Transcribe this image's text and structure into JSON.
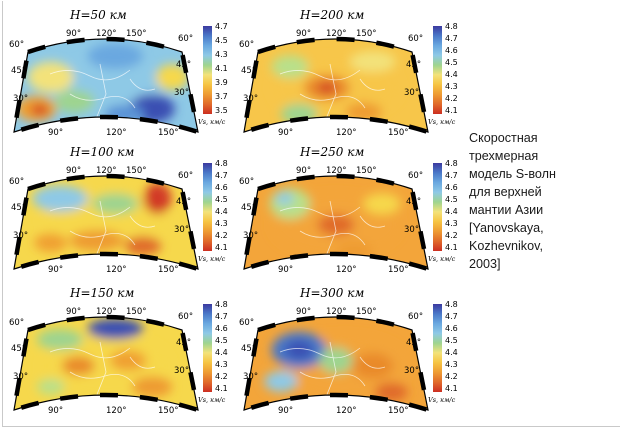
{
  "panels": [
    {
      "id": "p50",
      "title": "H=50 км",
      "ticks": [
        "4.7",
        "4.5",
        "4.3",
        "4.1",
        "3.9",
        "3.7",
        "3.5"
      ],
      "unit": "Vs, км/с",
      "lon_top": [
        "90°",
        "120°",
        "150°"
      ],
      "lon_bottom": [
        "90°",
        "120°",
        "150°"
      ],
      "lat_left": [
        "60°",
        "45°",
        "30°"
      ],
      "lat_right": [
        "60°",
        "45°",
        "30°"
      ],
      "blobs": [
        {
          "rx": 0.5,
          "ry": 0.55,
          "w": 0.6,
          "h": 0.55,
          "c": "#8ec9e6"
        },
        {
          "rx": 0.2,
          "ry": 0.45,
          "w": 0.25,
          "h": 0.3,
          "c": "#f3e27a"
        },
        {
          "rx": 0.12,
          "ry": 0.75,
          "w": 0.22,
          "h": 0.25,
          "c": "#f0a030"
        },
        {
          "rx": 0.14,
          "ry": 0.76,
          "w": 0.1,
          "h": 0.1,
          "c": "#d23a26"
        },
        {
          "rx": 0.33,
          "ry": 0.68,
          "w": 0.22,
          "h": 0.22,
          "c": "#9ed48f"
        },
        {
          "rx": 0.55,
          "ry": 0.25,
          "w": 0.3,
          "h": 0.25,
          "c": "#6aa8e0"
        },
        {
          "rx": 0.75,
          "ry": 0.75,
          "w": 0.25,
          "h": 0.28,
          "c": "#3b4fb2"
        },
        {
          "rx": 0.86,
          "ry": 0.45,
          "w": 0.18,
          "h": 0.25,
          "c": "#f6d84c"
        },
        {
          "rx": 0.6,
          "ry": 0.8,
          "w": 0.22,
          "h": 0.18,
          "c": "#5a93d6"
        }
      ]
    },
    {
      "id": "p200",
      "title": "H=200 км",
      "ticks": [
        "4.8",
        "4.7",
        "4.6",
        "4.5",
        "4.4",
        "4.3",
        "4.2",
        "4.1"
      ],
      "unit": "Vs, км/с",
      "lon_top": [
        "90°",
        "120°",
        "150°"
      ],
      "lon_bottom": [
        "90°",
        "120°",
        "150°"
      ],
      "lat_left": [
        "60°",
        "45°",
        "30°"
      ],
      "lat_right": [
        "60°",
        "45°",
        "30°"
      ],
      "blobs": [
        {
          "rx": 0.5,
          "ry": 0.55,
          "w": 0.7,
          "h": 0.6,
          "c": "#f7c64a"
        },
        {
          "rx": 0.45,
          "ry": 0.55,
          "w": 0.25,
          "h": 0.25,
          "c": "#e98a2c"
        },
        {
          "rx": 0.45,
          "ry": 0.55,
          "w": 0.1,
          "h": 0.1,
          "c": "#d23a26"
        },
        {
          "rx": 0.25,
          "ry": 0.35,
          "w": 0.2,
          "h": 0.22,
          "c": "#b9e08a"
        },
        {
          "rx": 0.7,
          "ry": 0.3,
          "w": 0.25,
          "h": 0.2,
          "c": "#f3e27a"
        },
        {
          "rx": 0.3,
          "ry": 0.8,
          "w": 0.2,
          "h": 0.2,
          "c": "#9ed48f"
        },
        {
          "rx": 0.65,
          "ry": 0.78,
          "w": 0.2,
          "h": 0.18,
          "c": "#ee9b33"
        }
      ]
    },
    {
      "id": "p100",
      "title": "H=100 км",
      "ticks": [
        "4.8",
        "4.7",
        "4.6",
        "4.5",
        "4.4",
        "4.3",
        "4.2",
        "4.1"
      ],
      "unit": "Vs, км/с",
      "lon_top": [
        "90°",
        "120°",
        "150°"
      ],
      "lon_bottom": [
        "90°",
        "120°",
        "150°"
      ],
      "lat_left": [
        "60°",
        "45°",
        "30°"
      ],
      "lat_right": [
        "60°",
        "45°",
        "30°"
      ],
      "blobs": [
        {
          "rx": 0.5,
          "ry": 0.5,
          "w": 0.7,
          "h": 0.6,
          "c": "#f6d84c"
        },
        {
          "rx": 0.25,
          "ry": 0.3,
          "w": 0.3,
          "h": 0.25,
          "c": "#8ec9e6"
        },
        {
          "rx": 0.55,
          "ry": 0.35,
          "w": 0.25,
          "h": 0.2,
          "c": "#9ed48f"
        },
        {
          "rx": 0.78,
          "ry": 0.3,
          "w": 0.15,
          "h": 0.3,
          "c": "#d23a26"
        },
        {
          "rx": 0.45,
          "ry": 0.7,
          "w": 0.3,
          "h": 0.2,
          "c": "#ee9b33"
        },
        {
          "rx": 0.2,
          "ry": 0.72,
          "w": 0.18,
          "h": 0.18,
          "c": "#f0a030"
        },
        {
          "rx": 0.7,
          "ry": 0.75,
          "w": 0.2,
          "h": 0.18,
          "c": "#e06a2a"
        }
      ]
    },
    {
      "id": "p250",
      "title": "H=250 км",
      "ticks": [
        "4.8",
        "4.7",
        "4.6",
        "4.5",
        "4.4",
        "4.3",
        "4.2",
        "4.1"
      ],
      "unit": "Vs, км/с",
      "lon_top": [
        "90°",
        "120°",
        "150°"
      ],
      "lon_bottom": [
        "90°",
        "120°",
        "150°"
      ],
      "lat_left": [
        "60°",
        "45°",
        "30°"
      ],
      "lat_right": [
        "60°",
        "45°",
        "30°"
      ],
      "blobs": [
        {
          "rx": 0.5,
          "ry": 0.55,
          "w": 0.7,
          "h": 0.6,
          "c": "#f3a53a"
        },
        {
          "rx": 0.25,
          "ry": 0.35,
          "w": 0.22,
          "h": 0.3,
          "c": "#b9e08a"
        },
        {
          "rx": 0.22,
          "ry": 0.3,
          "w": 0.1,
          "h": 0.12,
          "c": "#8ec9e6"
        },
        {
          "rx": 0.5,
          "ry": 0.55,
          "w": 0.2,
          "h": 0.2,
          "c": "#e06a2a"
        },
        {
          "rx": 0.75,
          "ry": 0.35,
          "w": 0.2,
          "h": 0.2,
          "c": "#f6d84c"
        },
        {
          "rx": 0.6,
          "ry": 0.8,
          "w": 0.2,
          "h": 0.18,
          "c": "#ee9b33"
        }
      ]
    },
    {
      "id": "p150",
      "title": "H=150 км",
      "ticks": [
        "4.8",
        "4.7",
        "4.6",
        "4.5",
        "4.4",
        "4.3",
        "4.2",
        "4.1"
      ],
      "unit": "Vs, км/с",
      "lon_top": [
        "90°",
        "120°",
        "150°"
      ],
      "lon_bottom": [
        "90°",
        "120°",
        "150°"
      ],
      "lat_left": [
        "60°",
        "45°",
        "30°"
      ],
      "lat_right": [
        "60°",
        "45°",
        "30°"
      ],
      "blobs": [
        {
          "rx": 0.5,
          "ry": 0.55,
          "w": 0.7,
          "h": 0.6,
          "c": "#f6d84c"
        },
        {
          "rx": 0.55,
          "ry": 0.2,
          "w": 0.3,
          "h": 0.2,
          "c": "#3b4fb2"
        },
        {
          "rx": 0.25,
          "ry": 0.3,
          "w": 0.25,
          "h": 0.2,
          "c": "#9ed48f"
        },
        {
          "rx": 0.35,
          "ry": 0.55,
          "w": 0.18,
          "h": 0.18,
          "c": "#e98a2c"
        },
        {
          "rx": 0.62,
          "ry": 0.5,
          "w": 0.2,
          "h": 0.2,
          "c": "#f0a030"
        },
        {
          "rx": 0.75,
          "ry": 0.75,
          "w": 0.22,
          "h": 0.2,
          "c": "#ee9b33"
        },
        {
          "rx": 0.2,
          "ry": 0.75,
          "w": 0.15,
          "h": 0.15,
          "c": "#b9e08a"
        }
      ]
    },
    {
      "id": "p300",
      "title": "H=300 км",
      "ticks": [
        "4.8",
        "4.7",
        "4.6",
        "4.5",
        "4.4",
        "4.3",
        "4.2",
        "4.1"
      ],
      "unit": "Vs, км/с",
      "lon_top": [
        "90°",
        "120°",
        "150°"
      ],
      "lon_bottom": [
        "90°",
        "120°",
        "150°"
      ],
      "lat_left": [
        "60°",
        "45°",
        "30°"
      ],
      "lat_right": [
        "60°",
        "45°",
        "30°"
      ],
      "blobs": [
        {
          "rx": 0.55,
          "ry": 0.55,
          "w": 0.7,
          "h": 0.6,
          "c": "#f3a53a"
        },
        {
          "rx": 0.3,
          "ry": 0.4,
          "w": 0.3,
          "h": 0.35,
          "c": "#4a78c8"
        },
        {
          "rx": 0.3,
          "ry": 0.4,
          "w": 0.15,
          "h": 0.18,
          "c": "#3b4fb2"
        },
        {
          "rx": 0.2,
          "ry": 0.7,
          "w": 0.18,
          "h": 0.2,
          "c": "#8ec9e6"
        },
        {
          "rx": 0.5,
          "ry": 0.5,
          "w": 0.18,
          "h": 0.25,
          "c": "#9ed48f"
        },
        {
          "rx": 0.7,
          "ry": 0.55,
          "w": 0.22,
          "h": 0.25,
          "c": "#e98a2c"
        },
        {
          "rx": 0.8,
          "ry": 0.8,
          "w": 0.18,
          "h": 0.18,
          "c": "#e06a2a"
        }
      ]
    }
  ],
  "caption_lines": [
    "Скоростная",
    "трехмерная",
    "модель S-волн",
    "для верхней",
    "мантии Азии",
    "[Yanovskaya,",
    "Kozhevnikov,",
    "2003]"
  ]
}
